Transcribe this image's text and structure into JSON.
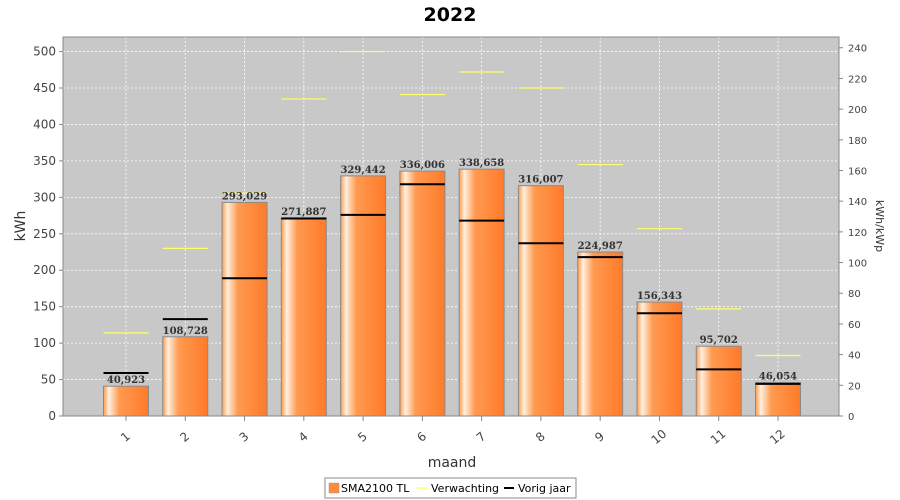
{
  "chart_data": {
    "type": "bar",
    "title": "2022",
    "xlabel": "maand",
    "ylabel": "kWh",
    "ylabel_right": "kWh/kWp",
    "categories": [
      "1",
      "2",
      "3",
      "4",
      "5",
      "6",
      "7",
      "8",
      "9",
      "10",
      "11",
      "12"
    ],
    "ylim": [
      0,
      520
    ],
    "yticks": [
      0,
      50,
      100,
      150,
      200,
      250,
      300,
      350,
      400,
      450,
      500
    ],
    "ylim_right": [
      0,
      247
    ],
    "yticks_right": [
      0,
      20,
      40,
      60,
      80,
      100,
      120,
      140,
      160,
      180,
      200,
      220,
      240
    ],
    "grid": true,
    "legend_position": "bottom",
    "series": [
      {
        "name": "SMA2100 TL",
        "kind": "bar",
        "color": "#ff8c3a",
        "values": [
          40.923,
          108.728,
          293.029,
          271.887,
          329.442,
          336.006,
          338.658,
          316.007,
          224.987,
          156.343,
          95.702,
          46.054
        ],
        "labels": [
          "40,923",
          "108,728",
          "293,029",
          "271,887",
          "329,442",
          "336,006",
          "338,658",
          "316,007",
          "224,987",
          "156,343",
          "95,702",
          "46,054"
        ]
      },
      {
        "name": "Verwachting",
        "kind": "marker",
        "color": "#ffff66",
        "values": [
          114,
          230,
          306,
          435,
          500,
          441,
          472,
          450,
          345,
          257,
          147,
          83
        ]
      },
      {
        "name": "Vorig jaar",
        "kind": "marker",
        "color": "#000000",
        "values": [
          59,
          133,
          189,
          271,
          276,
          318,
          268,
          237,
          218,
          141,
          64,
          44
        ]
      }
    ]
  }
}
